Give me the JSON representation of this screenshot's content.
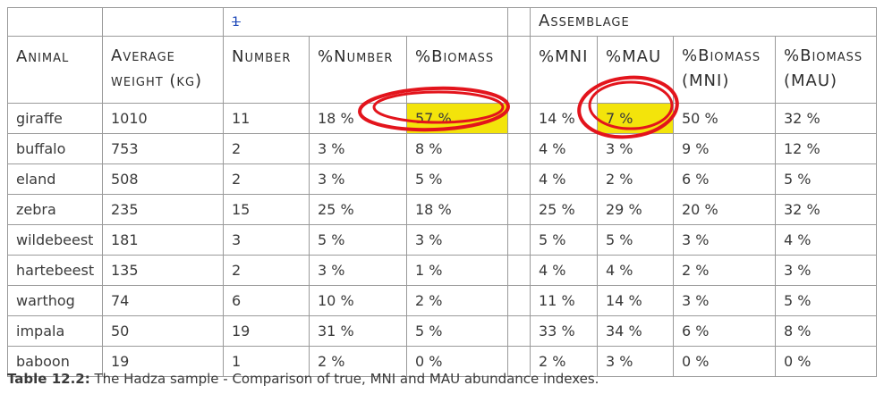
{
  "table": {
    "group_marker": "1",
    "group_label": "Assemblage",
    "columns": [
      "Animal",
      "Average weight (kg)",
      "Number",
      "%Number",
      "%Biomass",
      "%MNI",
      "%MAU",
      "%Biomass (MNI)",
      "%Biomass (MAU)"
    ],
    "rows": [
      [
        "giraffe",
        "1010",
        "11",
        "18 %",
        "57 %",
        "14 %",
        "7 %",
        "50 %",
        "32 %"
      ],
      [
        "buffalo",
        "753",
        "2",
        "3 %",
        "8 %",
        "4 %",
        "3 %",
        "9 %",
        "12 %"
      ],
      [
        "eland",
        "508",
        "2",
        "3 %",
        "5 %",
        "4 %",
        "2 %",
        "6 %",
        "5 %"
      ],
      [
        "zebra",
        "235",
        "15",
        "25 %",
        "18 %",
        "25 %",
        "29 %",
        "20 %",
        "32 %"
      ],
      [
        "wildebeest",
        "181",
        "3",
        "5 %",
        "3 %",
        "5 %",
        "5 %",
        "3 %",
        "4 %"
      ],
      [
        "hartebeest",
        "135",
        "2",
        "3 %",
        "1 %",
        "4 %",
        "4 %",
        "2 %",
        "3 %"
      ],
      [
        "warthog",
        "74",
        "6",
        "10 %",
        "2 %",
        "11 %",
        "14 %",
        "3 %",
        "5 %"
      ],
      [
        "impala",
        "50",
        "19",
        "31 %",
        "5 %",
        "33 %",
        "34 %",
        "6 %",
        "8 %"
      ],
      [
        "baboon",
        "19",
        "1",
        "2 %",
        "0 %",
        "2 %",
        "3 %",
        "0 %",
        "0 %"
      ]
    ]
  },
  "caption": {
    "label": "Table 12.2:",
    "text": " The Hadza sample - Comparison of true, MNI and MAU abundance indexes."
  },
  "annotations": {
    "highlight_color": "#f3e40b",
    "circle_color": "#e3141c",
    "highlighted_cells": [
      "giraffe %Biomass",
      "giraffe %MAU"
    ]
  }
}
